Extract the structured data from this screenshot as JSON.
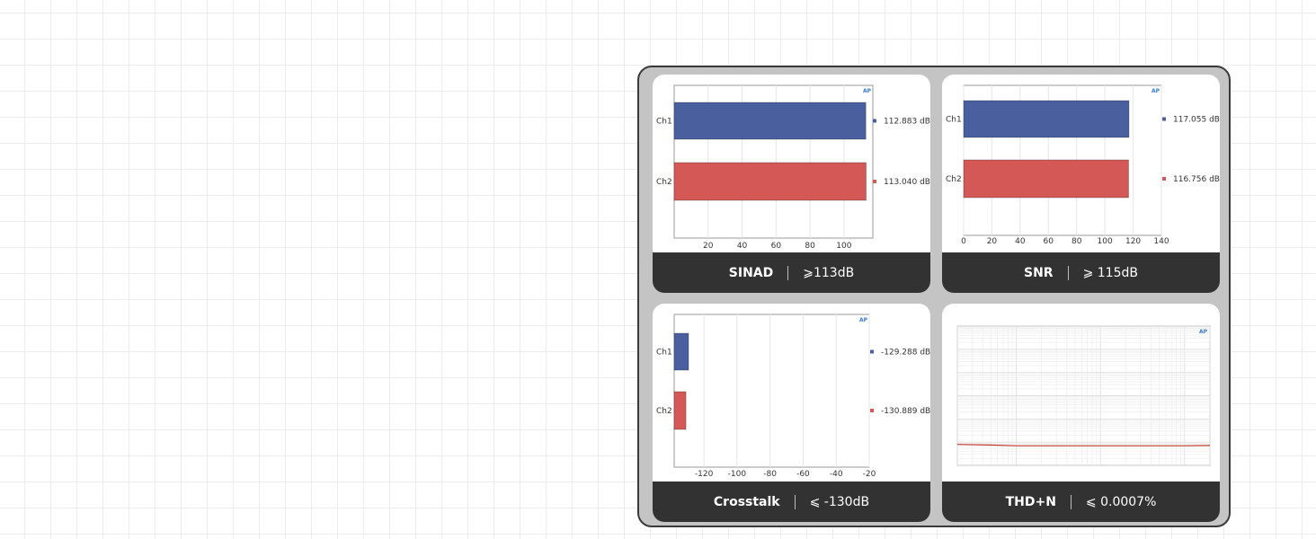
{
  "panels": [
    {
      "metric": "SINAD",
      "spec": "⩾113dB"
    },
    {
      "metric": "SNR",
      "spec": "⩾ 115dB"
    },
    {
      "metric": "Crosstalk",
      "spec": "⩽ -130dB"
    },
    {
      "metric": "THD+N",
      "spec": "⩽ 0.0007%"
    }
  ],
  "chart_data": [
    {
      "type": "bar",
      "orientation": "horizontal",
      "categories": [
        "Ch1",
        "Ch2"
      ],
      "values": [
        112.883,
        113.04
      ],
      "value_labels": [
        "112.883 dB",
        "113.040 dB"
      ],
      "colors": [
        "#4a5f9e",
        "#d35856"
      ],
      "xlim": [
        0,
        117
      ],
      "xticks": [
        20,
        40,
        60,
        80,
        100
      ],
      "xtick_labels": [
        "20",
        "40",
        "60",
        "80",
        "100"
      ],
      "logo": "AP"
    },
    {
      "type": "bar",
      "orientation": "horizontal",
      "categories": [
        "Ch1",
        "Ch2"
      ],
      "values": [
        117.055,
        116.756
      ],
      "value_labels": [
        "117.055 dB",
        "116.756 dB"
      ],
      "colors": [
        "#4a5f9e",
        "#d35856"
      ],
      "xlim": [
        0,
        140
      ],
      "xticks": [
        0,
        20,
        40,
        60,
        80,
        100,
        120,
        140
      ],
      "xtick_labels": [
        "0",
        "20",
        "40",
        "60",
        "80",
        "100",
        "120",
        "140"
      ],
      "logo": "AP"
    },
    {
      "type": "bar",
      "orientation": "horizontal",
      "categories": [
        "Ch1",
        "Ch2"
      ],
      "values": [
        -129.288,
        -130.889
      ],
      "value_labels": [
        "-129.288 dB",
        "-130.889 dB"
      ],
      "colors": [
        "#4a5f9e",
        "#d35856"
      ],
      "xlim": [
        -138,
        -20
      ],
      "xticks": [
        -120,
        -100,
        -80,
        -60,
        -40,
        -20
      ],
      "xtick_labels": [
        "-120",
        "-100",
        "-80",
        "-60",
        "-40",
        "-20"
      ],
      "logo": "AP"
    },
    {
      "type": "line",
      "scale": "log-log",
      "x": [
        20,
        50,
        100,
        200,
        500,
        1000,
        2000,
        5000,
        10000,
        20000
      ],
      "series": [
        {
          "values": [
            0.0008,
            0.00075,
            0.0007,
            0.0007,
            0.0007,
            0.0007,
            0.0007,
            0.0007,
            0.0007,
            0.00072
          ],
          "color": "#c0392b"
        }
      ],
      "xlim": [
        20,
        20000
      ],
      "ylim": [
        0.0001,
        100
      ],
      "grid": true,
      "logo": "AP"
    }
  ]
}
